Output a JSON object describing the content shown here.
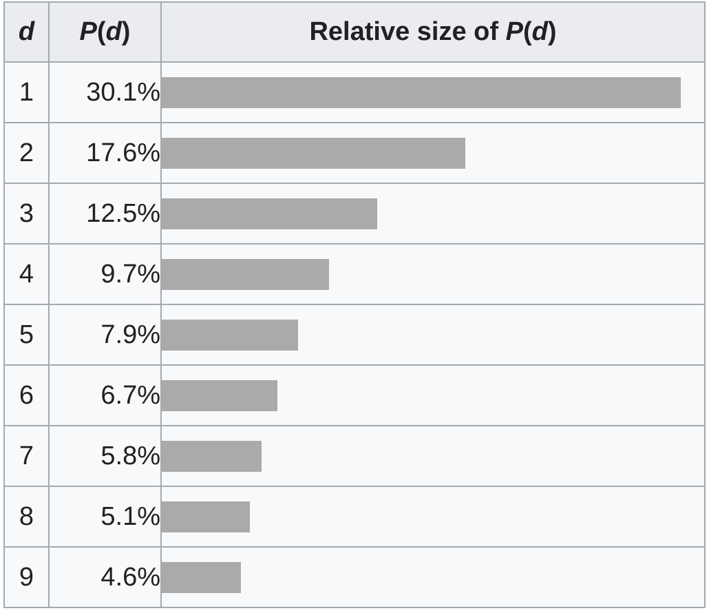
{
  "chart_data": {
    "type": "bar",
    "orientation": "horizontal",
    "headers": {
      "digit": "d",
      "prob_italic": "P",
      "prob_arg": "d",
      "relative_prefix": "Relative size of "
    },
    "categories": [
      "1",
      "2",
      "3",
      "4",
      "5",
      "6",
      "7",
      "8",
      "9"
    ],
    "values": [
      30.1,
      17.6,
      12.5,
      9.7,
      7.9,
      6.7,
      5.8,
      5.1,
      4.6
    ],
    "value_labels": [
      "30.1%",
      "17.6%",
      "12.5%",
      "9.7%",
      "7.9%",
      "6.7%",
      "5.8%",
      "5.1%",
      "4.6%"
    ],
    "xlim": [
      0,
      30.1
    ],
    "grid": false,
    "colors": {
      "bar": "#aaaaaa",
      "header_bg": "#eaecf0",
      "cell_bg": "#f8f9fa",
      "border": "#a2a9b1"
    }
  }
}
